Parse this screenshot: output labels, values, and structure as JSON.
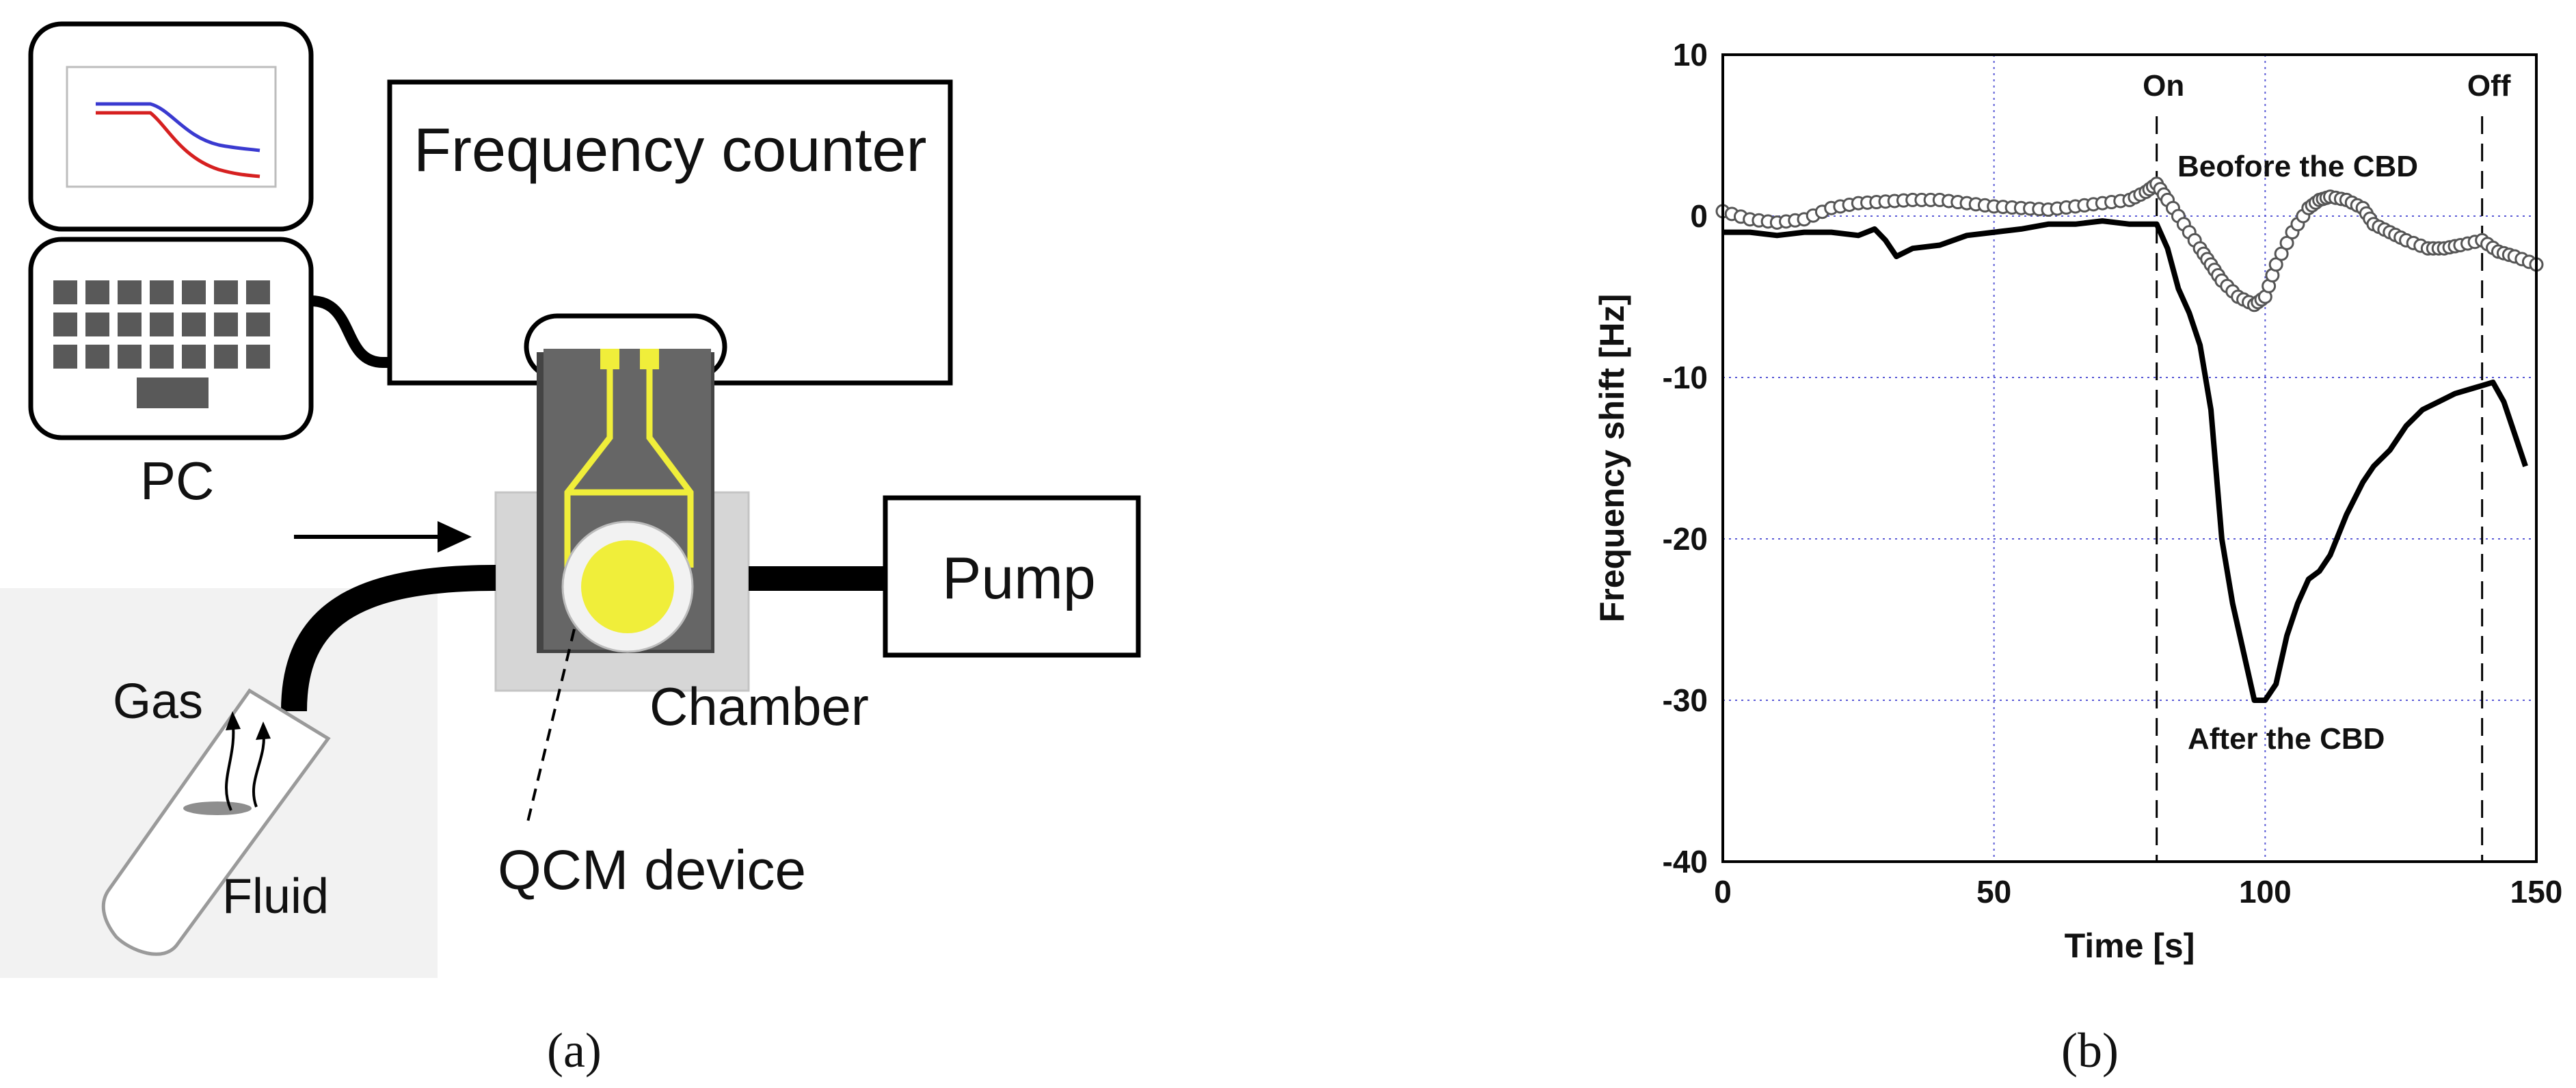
{
  "panel_a": {
    "caption": "(a)",
    "labels": {
      "pc": "PC",
      "frequency_counter": "Frequency counter",
      "pump": "Pump",
      "chamber": "Chamber",
      "qcm_device": "QCM device",
      "gas": "Gas",
      "fluid": "Fluid"
    },
    "colors": {
      "qcm_electrode": "#f0ee3a",
      "qcm_body": "#666666",
      "trace_red": "#d62020",
      "trace_blue": "#3a3ad0"
    }
  },
  "panel_b": {
    "caption": "(b)",
    "chart_data": {
      "type": "line",
      "xlabel": "Time [s]",
      "ylabel": "Frequency shift [Hz]",
      "xlim": [
        0,
        150
      ],
      "ylim": [
        -40,
        10
      ],
      "xticks": [
        "0",
        "50",
        "100",
        "150"
      ],
      "yticks": [
        "10",
        "0",
        "-10",
        "-20",
        "-30",
        "-40"
      ],
      "grid": true,
      "markers": [
        {
          "label": "On",
          "x": 80
        },
        {
          "label": "Off",
          "x": 140
        }
      ],
      "series": [
        {
          "name": "Beofore the CBD",
          "style": "open-circles",
          "x": [
            0,
            5,
            10,
            15,
            20,
            25,
            30,
            35,
            40,
            45,
            50,
            55,
            60,
            65,
            70,
            75,
            78,
            80,
            82,
            85,
            88,
            90,
            92,
            95,
            98,
            100,
            102,
            105,
            108,
            110,
            112,
            115,
            118,
            120,
            123,
            126,
            130,
            133,
            136,
            140,
            143,
            146,
            150
          ],
          "y": [
            0.3,
            -0.2,
            -0.4,
            -0.2,
            0.5,
            0.8,
            0.9,
            1.0,
            1.0,
            0.8,
            0.6,
            0.5,
            0.4,
            0.6,
            0.8,
            1.0,
            1.5,
            2.0,
            1.0,
            -0.5,
            -2.0,
            -3.0,
            -4.0,
            -5.0,
            -5.5,
            -5.0,
            -3.0,
            -1.0,
            0.5,
            1.0,
            1.2,
            1.0,
            0.5,
            -0.5,
            -1.0,
            -1.5,
            -2.0,
            -2.0,
            -1.8,
            -1.5,
            -2.2,
            -2.5,
            -3.0
          ]
        },
        {
          "name": "After the CBD",
          "style": "solid-line",
          "x": [
            0,
            5,
            10,
            15,
            20,
            25,
            28,
            30,
            32,
            35,
            40,
            45,
            50,
            55,
            60,
            65,
            70,
            75,
            78,
            80,
            82,
            84,
            86,
            88,
            90,
            92,
            94,
            96,
            98,
            100,
            102,
            104,
            106,
            108,
            110,
            112,
            115,
            118,
            120,
            123,
            126,
            129,
            132,
            135,
            138,
            140,
            142,
            144,
            146,
            148
          ],
          "y": [
            -1.0,
            -1.0,
            -1.2,
            -1.0,
            -1.0,
            -1.2,
            -0.8,
            -1.5,
            -2.5,
            -2.0,
            -1.8,
            -1.2,
            -1.0,
            -0.8,
            -0.5,
            -0.5,
            -0.3,
            -0.5,
            -0.5,
            -0.5,
            -2.0,
            -4.5,
            -6.0,
            -8.0,
            -12.0,
            -20.0,
            -24.0,
            -27.0,
            -30.0,
            -30.0,
            -29.0,
            -26.0,
            -24.0,
            -22.5,
            -22.0,
            -21.0,
            -18.5,
            -16.5,
            -15.5,
            -14.5,
            -13.0,
            -12.0,
            -11.5,
            -11.0,
            -10.7,
            -10.5,
            -10.3,
            -11.5,
            -13.5,
            -15.5
          ]
        }
      ]
    }
  }
}
